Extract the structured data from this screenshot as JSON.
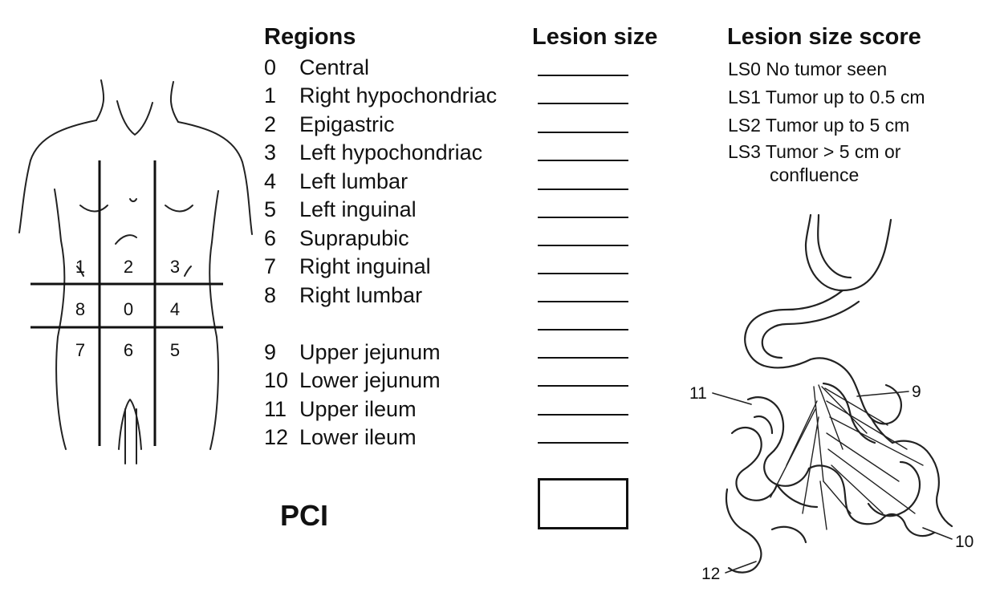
{
  "headers": {
    "regions": "Regions",
    "lesion_size": "Lesion size",
    "lesion_size_score": "Lesion size score"
  },
  "regions": [
    {
      "num": "0",
      "name": "Central"
    },
    {
      "num": "1",
      "name": "Right hypochondriac"
    },
    {
      "num": "2",
      "name": "Epigastric"
    },
    {
      "num": "3",
      "name": "Left hypochondriac"
    },
    {
      "num": "4",
      "name": "Left lumbar"
    },
    {
      "num": "5",
      "name": "Left inguinal"
    },
    {
      "num": "6",
      "name": "Suprapubic"
    },
    {
      "num": "7",
      "name": "Right inguinal"
    },
    {
      "num": "8",
      "name": "Right lumbar"
    },
    {
      "num": "9",
      "name": "Upper jejunum"
    },
    {
      "num": "10",
      "name": "Lower jejunum"
    },
    {
      "num": "11",
      "name": "Upper ileum"
    },
    {
      "num": "12",
      "name": "Lower ileum"
    }
  ],
  "scores": [
    {
      "code": "LS0",
      "text": "No tumor seen"
    },
    {
      "code": "LS1",
      "text": "Tumor up to 0.5 cm"
    },
    {
      "code": "LS2",
      "text": "Tumor up to 5 cm"
    },
    {
      "code": "LS3",
      "text": "Tumor > 5 cm or",
      "continuation": "confluence"
    }
  ],
  "pci_label": "PCI",
  "torso_grid_labels": [
    "1",
    "2",
    "3",
    "8",
    "0",
    "4",
    "7",
    "6",
    "5"
  ],
  "intestine_labels": [
    "11",
    "9",
    "12",
    "10"
  ]
}
